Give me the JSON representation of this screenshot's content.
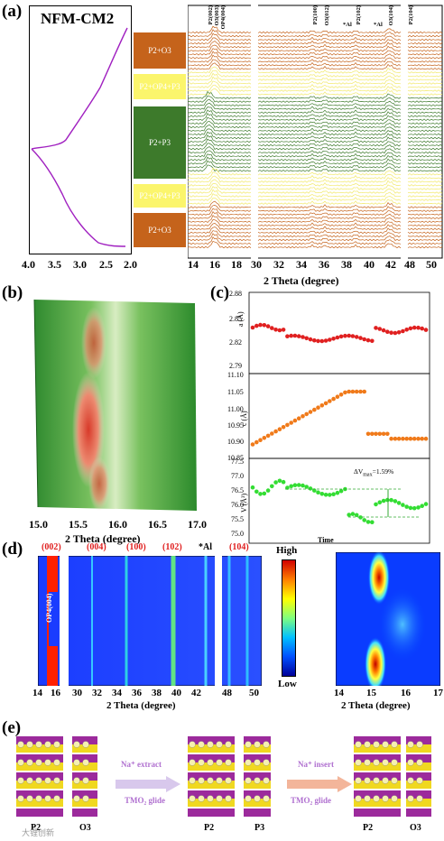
{
  "panel_a": {
    "label": "(a)",
    "sample": "NFM-CM2",
    "xaxis_left": {
      "ticks": [
        "4.0",
        "3.5",
        "3.0",
        "2.5",
        "2.0"
      ]
    },
    "phases": [
      "P2+O3",
      "P2+OP4+P3",
      "P2+P3",
      "P2+OP4+P3",
      "P2+O3"
    ],
    "phase_colors": [
      "#c5631b",
      "#fbf56c",
      "#3d7a2b",
      "#fbf56c",
      "#c5631b"
    ],
    "peaks": [
      "P2(002)",
      "O3(003)",
      "OP4(004)",
      "P2(100)",
      "O3(012)",
      "*Al",
      "P2(102)",
      "O3(104)",
      "*Al",
      "P2(104)"
    ],
    "xaxis_right": {
      "ticks": [
        "14",
        "16",
        "18",
        "30",
        "32",
        "34",
        "36",
        "38",
        "40",
        "42",
        "48",
        "50"
      ],
      "label": "2 Theta (degree)"
    }
  },
  "panel_b": {
    "label": "(b)",
    "xaxis": {
      "ticks": [
        "15.0",
        "15.5",
        "16.0",
        "16.5",
        "17.0"
      ],
      "label": "2 Theta (degree)"
    }
  },
  "panel_c": {
    "label": "(c)",
    "a": {
      "ylabel": "a (Å)",
      "ticks": [
        "2.88",
        "2.85",
        "2.82",
        "2.79"
      ]
    },
    "c": {
      "ylabel": "c (Å)",
      "ticks": [
        "11.10",
        "11.05",
        "11.00",
        "10.95",
        "10.90",
        "10.85"
      ]
    },
    "v": {
      "ylabel": "V (Å³)",
      "ticks": [
        "77.5",
        "77.0",
        "76.5",
        "76.0",
        "75.5",
        "75.0"
      ],
      "annotation": "ΔV",
      "annotation_sub": "max",
      "annotation_value": "=1.59%"
    },
    "xlabel": "Time"
  },
  "panel_d": {
    "label": "(d)",
    "peaks": [
      "(002)",
      "(004)",
      "(100)",
      "(102)",
      "*Al",
      "(104)"
    ],
    "inset_label": "OP4(004)",
    "colorbar": {
      "high": "High",
      "low": "Low"
    },
    "xaxis_left": {
      "ticks": [
        "14",
        "16",
        "30",
        "32",
        "34",
        "36",
        "38",
        "40",
        "42",
        "48",
        "50"
      ],
      "label": "2 Theta (degree)"
    },
    "xaxis_right": {
      "ticks": [
        "14",
        "15",
        "16",
        "17"
      ],
      "label": "2 Theta (degree)"
    }
  },
  "panel_e": {
    "label": "(e)",
    "structures": [
      "P2",
      "O3",
      "P2",
      "P3",
      "P2",
      "O3"
    ],
    "arrow1": {
      "line1": "Na⁺ extract",
      "line2": "TMO₂ glide"
    },
    "arrow2": {
      "line1": "Na⁺ insert",
      "line2": "TMO₂ glide"
    },
    "watermark": "大锂创新"
  },
  "colors": {
    "orange": "#c5631b",
    "yellow": "#fbf56c",
    "green": "#3d7a2b",
    "purple": "#a020c0",
    "red_dot": "#e02020",
    "orange_dot": "#f07a1a",
    "green_dot": "#33dd33"
  }
}
